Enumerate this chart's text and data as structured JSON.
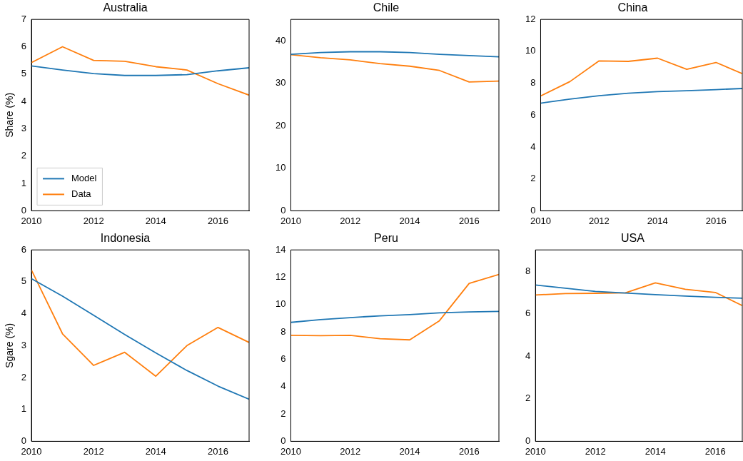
{
  "chart_data": [
    {
      "type": "line",
      "title": "Australia",
      "ylabel": "Share (%)",
      "x": [
        2010,
        2011,
        2012,
        2013,
        2014,
        2015,
        2016,
        2017
      ],
      "xlim": [
        2010,
        2017
      ],
      "xticks": [
        2010,
        2012,
        2014,
        2016
      ],
      "ylim": [
        0,
        7
      ],
      "yticks": [
        0,
        1,
        2,
        3,
        4,
        5,
        6,
        7
      ],
      "legend": "bottom left",
      "series": [
        {
          "name": "Model",
          "color": "#1f77b4",
          "values": [
            5.3,
            5.15,
            5.02,
            4.95,
            4.95,
            4.98,
            5.12,
            5.23
          ]
        },
        {
          "name": "Data",
          "color": "#ff7f0e",
          "values": [
            5.42,
            6.0,
            5.5,
            5.47,
            5.27,
            5.15,
            4.65,
            4.23
          ]
        }
      ]
    },
    {
      "type": "line",
      "title": "Chile",
      "x": [
        2010,
        2011,
        2012,
        2013,
        2014,
        2015,
        2016,
        2017
      ],
      "xlim": [
        2010,
        2017
      ],
      "xticks": [
        2010,
        2012,
        2014,
        2016
      ],
      "ylim": [
        0,
        45
      ],
      "yticks": [
        0,
        10,
        20,
        30,
        40
      ],
      "series": [
        {
          "color": "#1f77b4",
          "values": [
            36.8,
            37.2,
            37.4,
            37.4,
            37.2,
            36.8,
            36.5,
            36.2
          ]
        },
        {
          "color": "#ff7f0e",
          "values": [
            36.7,
            36.0,
            35.5,
            34.6,
            34.0,
            33.0,
            30.3,
            30.5
          ]
        }
      ]
    },
    {
      "type": "line",
      "title": "China",
      "x": [
        2010,
        2011,
        2012,
        2013,
        2014,
        2015,
        2016,
        2016.9
      ],
      "xlim": [
        2010,
        2016.9
      ],
      "xticks": [
        2010,
        2012,
        2014,
        2016
      ],
      "ylim": [
        0,
        12
      ],
      "yticks": [
        0,
        2,
        4,
        6,
        8,
        10,
        12
      ],
      "series": [
        {
          "color": "#1f77b4",
          "values": [
            6.75,
            7.0,
            7.22,
            7.37,
            7.47,
            7.53,
            7.6,
            7.67
          ]
        },
        {
          "color": "#ff7f0e",
          "values": [
            7.2,
            8.1,
            9.4,
            9.37,
            9.57,
            8.87,
            9.3,
            8.6
          ]
        }
      ]
    },
    {
      "type": "line",
      "title": "Indonesia",
      "ylabel": "Sgare (%)",
      "x": [
        2010,
        2011,
        2012,
        2013,
        2014,
        2015,
        2016,
        2017
      ],
      "xlim": [
        2010,
        2017
      ],
      "xticks": [
        2010,
        2012,
        2014,
        2016
      ],
      "ylim": [
        0,
        6
      ],
      "yticks": [
        0,
        1,
        2,
        3,
        4,
        5,
        6
      ],
      "series": [
        {
          "color": "#1f77b4",
          "values": [
            5.1,
            4.55,
            3.95,
            3.35,
            2.77,
            2.22,
            1.73,
            1.32
          ]
        },
        {
          "color": "#ff7f0e",
          "values": [
            5.37,
            3.37,
            2.38,
            2.79,
            2.04,
            3.0,
            3.57,
            3.1
          ]
        }
      ]
    },
    {
      "type": "line",
      "title": "Peru",
      "x": [
        2010,
        2011,
        2012,
        2013,
        2014,
        2015,
        2016,
        2017
      ],
      "xlim": [
        2010,
        2017
      ],
      "xticks": [
        2010,
        2012,
        2014,
        2016
      ],
      "ylim": [
        0,
        14
      ],
      "yticks": [
        0,
        2,
        4,
        6,
        8,
        10,
        12,
        14
      ],
      "series": [
        {
          "color": "#1f77b4",
          "values": [
            8.7,
            8.9,
            9.05,
            9.18,
            9.27,
            9.4,
            9.46,
            9.5
          ]
        },
        {
          "color": "#ff7f0e",
          "values": [
            7.75,
            7.73,
            7.75,
            7.5,
            7.42,
            8.82,
            11.55,
            12.2
          ]
        }
      ]
    },
    {
      "type": "line",
      "title": "USA",
      "x": [
        2010,
        2011,
        2012,
        2013,
        2014,
        2015,
        2016,
        2016.9
      ],
      "xlim": [
        2010,
        2016.9
      ],
      "xticks": [
        2010,
        2012,
        2014,
        2016
      ],
      "ylim": [
        0,
        9
      ],
      "yticks": [
        0,
        2,
        4,
        6,
        8
      ],
      "series": [
        {
          "color": "#1f77b4",
          "values": [
            7.35,
            7.2,
            7.05,
            6.97,
            6.9,
            6.83,
            6.77,
            6.73
          ]
        },
        {
          "color": "#ff7f0e",
          "values": [
            6.88,
            6.95,
            6.96,
            6.98,
            7.45,
            7.15,
            7.0,
            6.38
          ]
        }
      ]
    }
  ]
}
